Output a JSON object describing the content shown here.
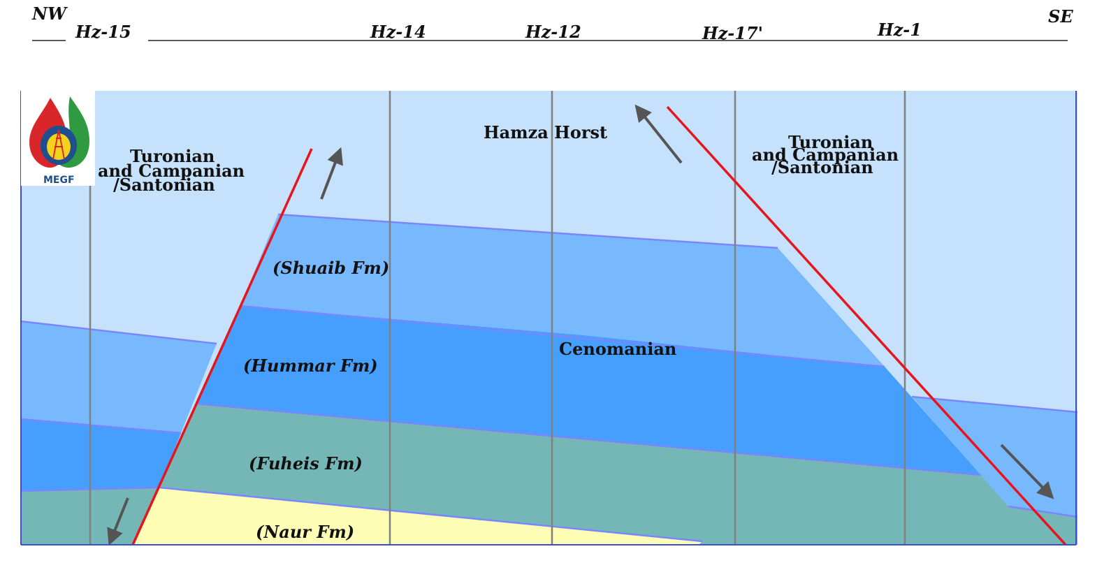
{
  "header": {
    "nw": "NW",
    "se": "SE",
    "wells": [
      "Hz-15",
      "Hz-14",
      "Hz-12",
      "Hz-17'",
      "Hz-1"
    ]
  },
  "logo": {
    "text": "MEGF"
  },
  "labels": {
    "turonian_left_1": "Turonian",
    "turonian_left_2": "and Campanian",
    "turonian_left_3": "/Santonian",
    "turonian_right_1": "Turonian",
    "turonian_right_2": "and Campanian",
    "turonian_right_3": "/Santonian",
    "hamza_horst": "Hamza Horst",
    "cenomanian": "Cenomanian",
    "shuaib": "(Shuaib Fm)",
    "hummar": "(Hummar Fm)",
    "fuheis": "(Fuheis Fm)",
    "naur": "(Naur Fm)"
  },
  "colors": {
    "sky": "#c5e1fb",
    "shuaib": "#78b9fd",
    "hummar": "#469ffc",
    "fuheis": "#75b7b7",
    "naur": "#fefdb5",
    "fault": "#e8141c",
    "well_line": "#808080",
    "boundary": "#7a86ff"
  }
}
